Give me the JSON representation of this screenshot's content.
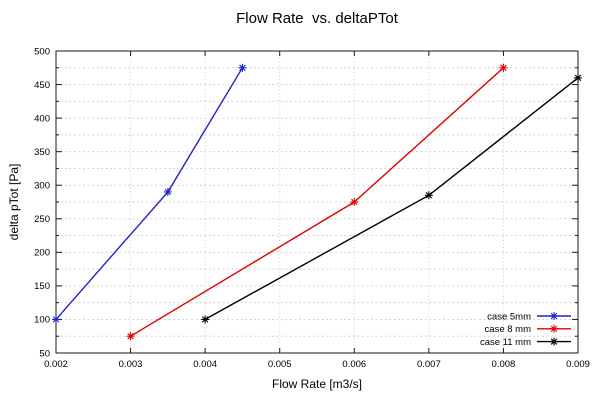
{
  "chart_data": {
    "type": "line",
    "title": "Flow Rate  vs. deltaPTot",
    "xlabel": "Flow Rate [m3/s]",
    "ylabel": "delta pTot [Pa]",
    "xlim": [
      0.002,
      0.009
    ],
    "ylim": [
      50,
      500
    ],
    "x_ticks": [
      0.002,
      0.003,
      0.004,
      0.005,
      0.006,
      0.007,
      0.008,
      0.009
    ],
    "x_tick_labels": [
      "0.002",
      "0.003",
      "0.004",
      "0.005",
      "0.006",
      "0.007",
      "0.008",
      "0.009"
    ],
    "y_ticks": [
      50,
      100,
      150,
      200,
      250,
      300,
      350,
      400,
      450,
      500
    ],
    "y_tick_labels": [
      "50",
      "100",
      "150",
      "200",
      "250",
      "300",
      "350",
      "400",
      "450",
      "500"
    ],
    "y_minor_step": 25,
    "grid": {
      "horizontal": "every 25 Pa, light gray dashed",
      "vertical": "major x ticks, light gray dotted",
      "grid_color": "#d4d4d4"
    },
    "legend": {
      "position": "bottom-right",
      "border": false
    },
    "series": [
      {
        "name": "case 5mm",
        "color": "#2222cc",
        "marker": "asterisk",
        "points": [
          [
            0.002,
            100
          ],
          [
            0.0035,
            290
          ],
          [
            0.0045,
            475
          ]
        ]
      },
      {
        "name": "case 8 mm",
        "color": "#e00000",
        "marker": "asterisk",
        "points": [
          [
            0.003,
            75
          ],
          [
            0.006,
            275
          ],
          [
            0.008,
            475
          ]
        ]
      },
      {
        "name": "case 11 mm",
        "color": "#000000",
        "marker": "asterisk",
        "points": [
          [
            0.004,
            100
          ],
          [
            0.007,
            285
          ],
          [
            0.009,
            460
          ]
        ]
      }
    ]
  }
}
